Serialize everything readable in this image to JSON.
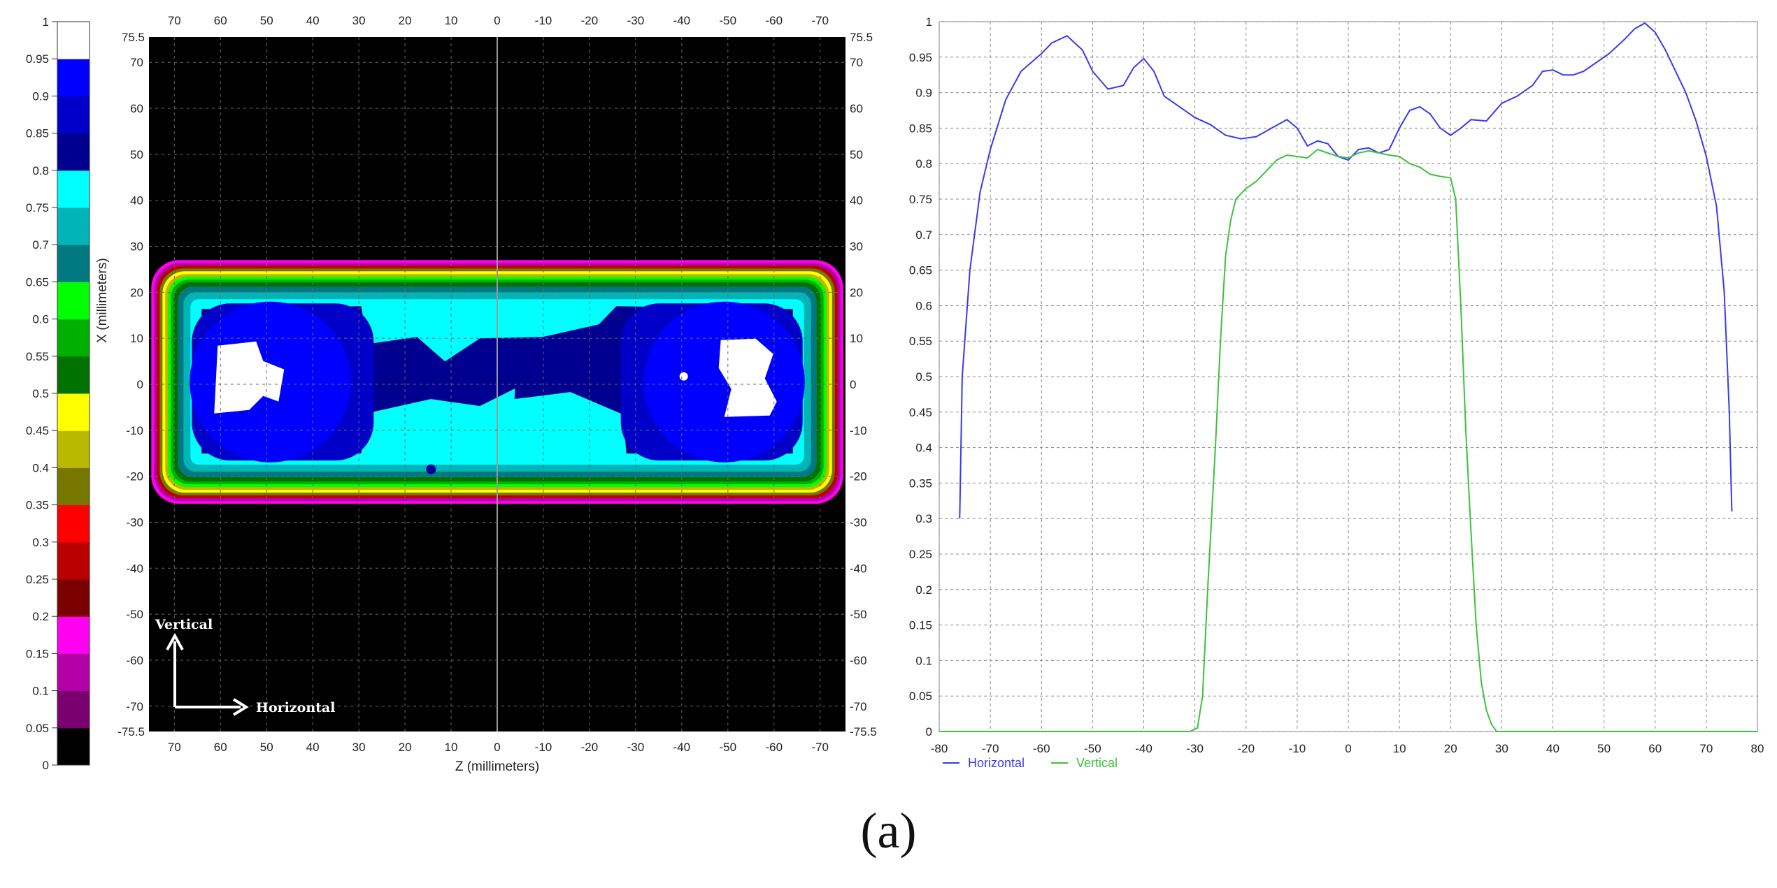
{
  "caption": "(a)",
  "chart_data": [
    {
      "type": "heatmap",
      "colorbar": {
        "ticks": [
          "0",
          "0.05",
          "0.1",
          "0.15",
          "0.2",
          "0.25",
          "0.3",
          "0.35",
          "0.4",
          "0.45",
          "0.5",
          "0.55",
          "0.6",
          "0.65",
          "0.7",
          "0.75",
          "0.8",
          "0.85",
          "0.9",
          "0.95",
          "1"
        ],
        "colors": [
          "#000000",
          "#7a0070",
          "#b300a6",
          "#ff00f0",
          "#7a0000",
          "#bb0000",
          "#ff0000",
          "#777700",
          "#b9b900",
          "#ffff00",
          "#007200",
          "#00b000",
          "#00ff00",
          "#007a80",
          "#00b4b8",
          "#00ffff",
          "#000090",
          "#0000c8",
          "#0000ff",
          "#ffffff"
        ]
      },
      "xlabel": "Z (millimeters)",
      "ylabel": "X (millimeters)",
      "x_ticks": [
        "70",
        "60",
        "50",
        "40",
        "30",
        "20",
        "10",
        "0",
        "-10",
        "-20",
        "-30",
        "-40",
        "-50",
        "-60",
        "-70"
      ],
      "y_ticks": [
        "70",
        "60",
        "50",
        "40",
        "30",
        "20",
        "10",
        "0",
        "-10",
        "-20",
        "-30",
        "-40",
        "-50",
        "-60",
        "-70"
      ],
      "xlim": [
        75.5,
        -75.5
      ],
      "ylim": [
        -75.5,
        75.5
      ],
      "corner_top": "75.5",
      "corner_bottom": "-75.5",
      "field": {
        "z_extent": [
          75,
          -75
        ],
        "x_extent": [
          -26,
          27
        ],
        "note_bands_outer_to_inner": "magenta, red, olive, yellow, green, teal, cyan, dark-blue, blue, white"
      },
      "annotations": {
        "vertical_arrow": "Vertical",
        "horizontal_arrow": "Horizontal"
      }
    },
    {
      "type": "line",
      "xlim": [
        -80,
        80
      ],
      "ylim": [
        0,
        1
      ],
      "grid": true,
      "x_ticks": [
        -80,
        -70,
        -60,
        -50,
        -40,
        -30,
        -20,
        -10,
        0,
        10,
        20,
        30,
        40,
        50,
        60,
        70,
        80
      ],
      "y_ticks": [
        "0",
        "0.05",
        "0.1",
        "0.15",
        "0.2",
        "0.25",
        "0.3",
        "0.35",
        "0.4",
        "0.45",
        "0.5",
        "0.55",
        "0.6",
        "0.65",
        "0.7",
        "0.75",
        "0.8",
        "0.85",
        "0.9",
        "0.95",
        "1"
      ],
      "legend_position": "bottom-left",
      "series": [
        {
          "name": "Horizontal",
          "color": "#3a3aee",
          "points": [
            [
              -76,
              0.3
            ],
            [
              -75.5,
              0.5
            ],
            [
              -74,
              0.65
            ],
            [
              -72,
              0.76
            ],
            [
              -70,
              0.82
            ],
            [
              -67,
              0.89
            ],
            [
              -64,
              0.93
            ],
            [
              -60,
              0.955
            ],
            [
              -58,
              0.97
            ],
            [
              -55,
              0.98
            ],
            [
              -52,
              0.96
            ],
            [
              -50,
              0.93
            ],
            [
              -47,
              0.905
            ],
            [
              -44,
              0.91
            ],
            [
              -42,
              0.935
            ],
            [
              -40,
              0.948
            ],
            [
              -38,
              0.93
            ],
            [
              -36,
              0.895
            ],
            [
              -33,
              0.88
            ],
            [
              -30,
              0.865
            ],
            [
              -27,
              0.855
            ],
            [
              -24,
              0.84
            ],
            [
              -21,
              0.835
            ],
            [
              -18,
              0.838
            ],
            [
              -15,
              0.85
            ],
            [
              -12,
              0.862
            ],
            [
              -10,
              0.85
            ],
            [
              -8,
              0.825
            ],
            [
              -6,
              0.832
            ],
            [
              -4,
              0.828
            ],
            [
              -2,
              0.81
            ],
            [
              0,
              0.805
            ],
            [
              2,
              0.82
            ],
            [
              4,
              0.822
            ],
            [
              6,
              0.815
            ],
            [
              8,
              0.82
            ],
            [
              10,
              0.85
            ],
            [
              12,
              0.875
            ],
            [
              14,
              0.88
            ],
            [
              16,
              0.87
            ],
            [
              18,
              0.85
            ],
            [
              20,
              0.84
            ],
            [
              22,
              0.85
            ],
            [
              24,
              0.862
            ],
            [
              27,
              0.86
            ],
            [
              30,
              0.885
            ],
            [
              33,
              0.895
            ],
            [
              36,
              0.91
            ],
            [
              38,
              0.93
            ],
            [
              40,
              0.932
            ],
            [
              42,
              0.925
            ],
            [
              44,
              0.925
            ],
            [
              46,
              0.93
            ],
            [
              48,
              0.94
            ],
            [
              51,
              0.955
            ],
            [
              54,
              0.975
            ],
            [
              56,
              0.99
            ],
            [
              58,
              0.998
            ],
            [
              60,
              0.985
            ],
            [
              62,
              0.96
            ],
            [
              64,
              0.93
            ],
            [
              66,
              0.9
            ],
            [
              68,
              0.86
            ],
            [
              70,
              0.81
            ],
            [
              72,
              0.74
            ],
            [
              73.5,
              0.62
            ],
            [
              74.5,
              0.45
            ],
            [
              75,
              0.31
            ]
          ]
        },
        {
          "name": "Vertical",
          "color": "#3cc23c",
          "points": [
            [
              -80,
              0
            ],
            [
              -31,
              0
            ],
            [
              -29.5,
              0.005
            ],
            [
              -28.5,
              0.05
            ],
            [
              -27.5,
              0.2
            ],
            [
              -26,
              0.4
            ],
            [
              -25,
              0.55
            ],
            [
              -24,
              0.67
            ],
            [
              -23,
              0.72
            ],
            [
              -22,
              0.75
            ],
            [
              -20,
              0.765
            ],
            [
              -18,
              0.775
            ],
            [
              -16,
              0.79
            ],
            [
              -14,
              0.805
            ],
            [
              -12,
              0.812
            ],
            [
              -10,
              0.81
            ],
            [
              -8,
              0.808
            ],
            [
              -6,
              0.82
            ],
            [
              -4,
              0.815
            ],
            [
              -2,
              0.81
            ],
            [
              0,
              0.808
            ],
            [
              2,
              0.815
            ],
            [
              4,
              0.818
            ],
            [
              6,
              0.815
            ],
            [
              8,
              0.812
            ],
            [
              10,
              0.81
            ],
            [
              12,
              0.8
            ],
            [
              14,
              0.795
            ],
            [
              16,
              0.785
            ],
            [
              18,
              0.782
            ],
            [
              20,
              0.78
            ],
            [
              21,
              0.75
            ],
            [
              22,
              0.6
            ],
            [
              23,
              0.42
            ],
            [
              24,
              0.28
            ],
            [
              25,
              0.15
            ],
            [
              26,
              0.07
            ],
            [
              27,
              0.03
            ],
            [
              28,
              0.01
            ],
            [
              29,
              0
            ],
            [
              80,
              0
            ]
          ]
        }
      ]
    }
  ]
}
